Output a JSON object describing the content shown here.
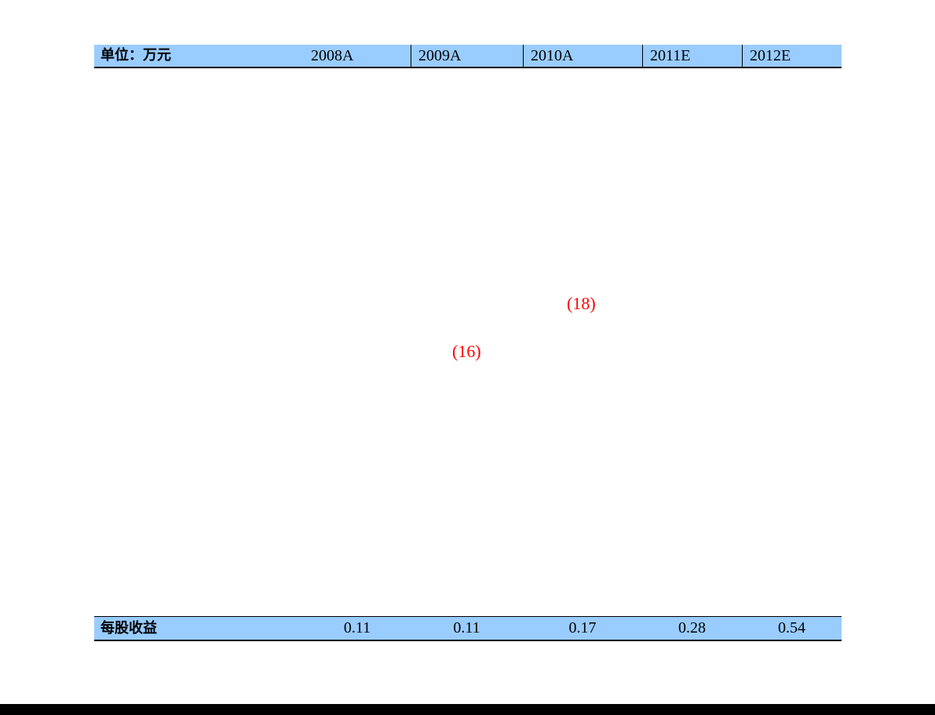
{
  "colors": {
    "band_blue": "#99CCFF",
    "border_black": "#000000",
    "negative_red": "#FF0000",
    "text_black": "#000000",
    "page_background": "#FFFFFF"
  },
  "header_row": {
    "unit_label": "单位：万元",
    "year_columns": [
      {
        "label": "2008A"
      },
      {
        "label": "2009A"
      },
      {
        "label": "2010A"
      },
      {
        "label": "2011E"
      },
      {
        "label": "2012E"
      }
    ]
  },
  "floating_cells": [
    {
      "text": "(16)",
      "column": "2009A",
      "meaning": "negative value shown in red"
    },
    {
      "text": "(18)",
      "column": "2010A",
      "meaning": "negative value shown in red"
    }
  ],
  "eps_row": {
    "label": "每股收益",
    "values": [
      "0.11",
      "0.11",
      "0.17",
      "0.28",
      "0.54"
    ]
  },
  "chart_data": {
    "type": "table",
    "title": "单位：万元",
    "columns": [
      "2008A",
      "2009A",
      "2010A",
      "2011E",
      "2012E"
    ],
    "rows": [
      {
        "label": "每股收益",
        "values": [
          0.11,
          0.11,
          0.17,
          0.28,
          0.54
        ]
      }
    ],
    "stray_values": [
      {
        "value": -16,
        "display": "(16)",
        "column": "2009A"
      },
      {
        "value": -18,
        "display": "(18)",
        "column": "2010A"
      }
    ]
  }
}
